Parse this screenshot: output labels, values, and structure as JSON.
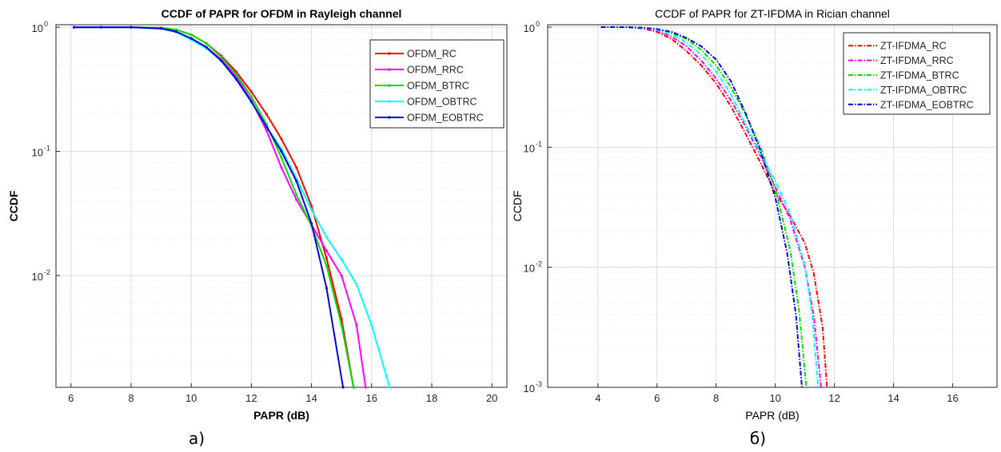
{
  "captions": [
    "а)",
    "б)"
  ],
  "chart_data": [
    {
      "type": "line",
      "title": "CCDF of PAPR for OFDM in Rayleigh channel",
      "xlabel": "PAPR (dB)",
      "ylabel": "CCDF",
      "xlim": [
        5.5,
        20.5
      ],
      "xticks": [
        "6",
        "8",
        "10",
        "12",
        "14",
        "16",
        "18",
        "20"
      ],
      "ylim_log10": [
        -2.9,
        0.02
      ],
      "yscale": "log",
      "yticks": [
        {
          "base": "10",
          "exp": "0",
          "log": 0
        },
        {
          "base": "10",
          "exp": "-1",
          "log": -1
        },
        {
          "base": "10",
          "exp": "-2",
          "log": -2
        }
      ],
      "grid": true,
      "legend": "top-right",
      "series": [
        {
          "name": "OFDM_RC",
          "color": "#ff0000",
          "x": [
            6.1,
            7,
            8,
            9,
            9.5,
            10,
            10.5,
            11,
            11.5,
            12,
            12.5,
            13,
            13.5,
            14,
            14.5,
            15,
            15.4
          ],
          "logy": [
            0,
            0,
            0,
            -0.005,
            -0.02,
            -0.06,
            -0.13,
            -0.23,
            -0.36,
            -0.52,
            -0.7,
            -0.9,
            -1.13,
            -1.44,
            -1.86,
            -2.35,
            -2.9
          ]
        },
        {
          "name": "OFDM_RRC",
          "color": "#ff00ff",
          "x": [
            6.1,
            7,
            8,
            9,
            9.5,
            10,
            10.5,
            11,
            11.5,
            12,
            12.5,
            13,
            13.5,
            14,
            14.5,
            15,
            15.5,
            15.8
          ],
          "logy": [
            0,
            0,
            0,
            -0.01,
            -0.04,
            -0.09,
            -0.16,
            -0.26,
            -0.4,
            -0.59,
            -0.83,
            -1.13,
            -1.39,
            -1.59,
            -1.8,
            -2.0,
            -2.4,
            -2.9
          ]
        },
        {
          "name": "OFDM_BTRC",
          "color": "#00dd00",
          "x": [
            6.1,
            7,
            8,
            9,
            9.5,
            10,
            10.5,
            11,
            11.5,
            12,
            12.5,
            13,
            13.5,
            14,
            14.5,
            15,
            15.4
          ],
          "logy": [
            0,
            0,
            0,
            -0.005,
            -0.02,
            -0.06,
            -0.13,
            -0.24,
            -0.38,
            -0.56,
            -0.78,
            -1.05,
            -1.35,
            -1.6,
            -1.92,
            -2.4,
            -2.9
          ]
        },
        {
          "name": "OFDM_OBTRC",
          "color": "#00ffff",
          "x": [
            6.1,
            7,
            8,
            9,
            9.5,
            10,
            10.5,
            11,
            11.5,
            12,
            12.5,
            13,
            13.5,
            14,
            14.5,
            15,
            15.5,
            16,
            16.6
          ],
          "logy": [
            0,
            0,
            0,
            -0.01,
            -0.04,
            -0.1,
            -0.17,
            -0.27,
            -0.42,
            -0.6,
            -0.8,
            -0.98,
            -1.22,
            -1.47,
            -1.69,
            -1.87,
            -2.07,
            -2.4,
            -2.9
          ]
        },
        {
          "name": "OFDM_EOBTRC",
          "color": "#0000dd",
          "x": [
            6.1,
            7,
            8,
            9,
            9.5,
            10,
            10.5,
            11,
            11.5,
            12,
            12.5,
            13,
            13.5,
            14,
            14.5,
            15.05
          ],
          "logy": [
            0,
            0,
            0,
            -0.01,
            -0.035,
            -0.09,
            -0.16,
            -0.27,
            -0.42,
            -0.6,
            -0.8,
            -1.0,
            -1.24,
            -1.58,
            -2.1,
            -2.9
          ]
        }
      ]
    },
    {
      "type": "line",
      "title": "CCDF of PAPR for ZT-IFDMA in Rician channel",
      "xlabel": "PAPR (dB)",
      "ylabel": "CCDF",
      "xlim": [
        2.3,
        17.5
      ],
      "xticks": [
        "4",
        "6",
        "8",
        "10",
        "12",
        "14",
        "16"
      ],
      "ylim_log10": [
        -3,
        0.02
      ],
      "yscale": "log",
      "yticks": [
        {
          "base": "10",
          "exp": "0",
          "log": 0
        },
        {
          "base": "10",
          "exp": "-1",
          "log": -1
        },
        {
          "base": "10",
          "exp": "-2",
          "log": -2
        },
        {
          "base": "10",
          "exp": "-3",
          "log": -3
        }
      ],
      "grid": true,
      "legend": "top-right",
      "series": [
        {
          "name": "ZT-IFDMA_RC",
          "color": "#ff0000",
          "x": [
            4.1,
            5,
            5.5,
            6,
            6.5,
            7,
            7.5,
            8,
            8.5,
            9,
            9.5,
            10,
            10.5,
            11,
            11.3,
            11.6,
            11.75
          ],
          "logy": [
            0,
            0,
            -0.01,
            -0.04,
            -0.1,
            -0.2,
            -0.32,
            -0.47,
            -0.66,
            -0.89,
            -1.13,
            -1.38,
            -1.57,
            -1.8,
            -2.05,
            -2.5,
            -3.0
          ]
        },
        {
          "name": "ZT-IFDMA_RRC",
          "color": "#ff00ff",
          "x": [
            4.1,
            5,
            5.5,
            6,
            6.5,
            7,
            7.5,
            8,
            8.5,
            9,
            9.5,
            10,
            10.5,
            11,
            11.3,
            11.55
          ],
          "logy": [
            0,
            0,
            -0.01,
            -0.03,
            -0.08,
            -0.16,
            -0.28,
            -0.43,
            -0.61,
            -0.83,
            -1.07,
            -1.33,
            -1.6,
            -2.0,
            -2.4,
            -3.0
          ]
        },
        {
          "name": "ZT-IFDMA_BTRC",
          "color": "#00dd00",
          "x": [
            4.1,
            5,
            5.5,
            6,
            6.5,
            7,
            7.5,
            8,
            8.5,
            9,
            9.5,
            10,
            10.5,
            10.8,
            11.05
          ],
          "logy": [
            0,
            0,
            -0.005,
            -0.02,
            -0.05,
            -0.1,
            -0.19,
            -0.32,
            -0.5,
            -0.73,
            -1.0,
            -1.35,
            -1.85,
            -2.35,
            -3.0
          ]
        },
        {
          "name": "ZT-IFDMA_OBTRC",
          "color": "#00ffff",
          "x": [
            4.1,
            5,
            5.5,
            6,
            6.5,
            7,
            7.5,
            8,
            8.5,
            9,
            9.5,
            10,
            10.5,
            11,
            11.25,
            11.45
          ],
          "logy": [
            0,
            0,
            -0.005,
            -0.02,
            -0.06,
            -0.13,
            -0.23,
            -0.37,
            -0.56,
            -0.81,
            -1.05,
            -1.28,
            -1.55,
            -1.98,
            -2.4,
            -3.0
          ]
        },
        {
          "name": "ZT-IFDMA_EOBTRC",
          "color": "#0000dd",
          "x": [
            4.1,
            5,
            5.5,
            6,
            6.5,
            7,
            7.5,
            8,
            8.5,
            9,
            9.5,
            10,
            10.4,
            10.7,
            10.9
          ],
          "logy": [
            0,
            0,
            -0.005,
            -0.015,
            -0.04,
            -0.09,
            -0.16,
            -0.27,
            -0.45,
            -0.72,
            -1.03,
            -1.42,
            -1.88,
            -2.4,
            -3.0
          ]
        }
      ]
    }
  ]
}
